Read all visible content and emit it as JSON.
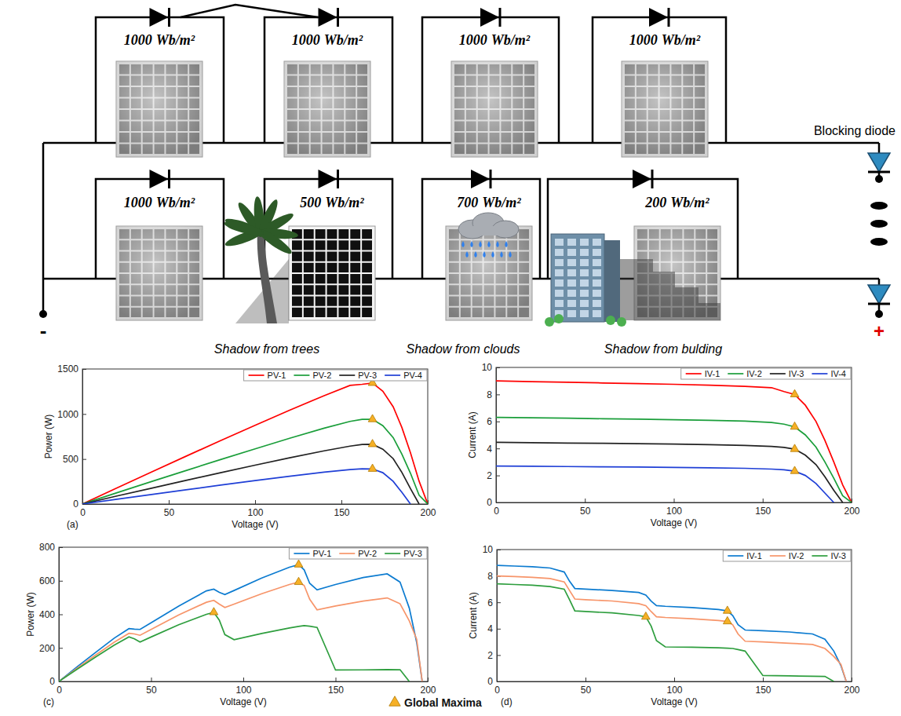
{
  "diagram": {
    "irradiance_unit": "Wb/m²",
    "blocking_diode_label": "Blocking diode",
    "terminals": {
      "negative": "-",
      "positive": "+"
    },
    "strings": [
      {
        "modules": [
          {
            "irradiance": 1000
          },
          {
            "irradiance": 1000
          },
          {
            "irradiance": 1000
          },
          {
            "irradiance": 1000
          }
        ]
      },
      {
        "modules": [
          {
            "irradiance": 1000
          },
          {
            "irradiance": 500,
            "shadow": "Shadow from trees"
          },
          {
            "irradiance": 700,
            "shadow": "Shadow from clouds"
          },
          {
            "irradiance": 200,
            "shadow": "Shadow from bulding"
          }
        ]
      }
    ]
  },
  "maxima_legend": {
    "label": "Global Maxima",
    "color": "#f6b026",
    "marker": "triangle"
  },
  "chart_data": [
    {
      "type": "line",
      "panel": "(a)",
      "x_label": "Voltage (V)",
      "y_label": "Power (W)",
      "x": [
        0,
        20,
        40,
        60,
        80,
        100,
        120,
        140,
        155,
        162,
        168,
        174,
        180,
        185,
        190,
        195,
        200
      ],
      "xlim": [
        0,
        200
      ],
      "xticks": [
        0,
        50,
        100,
        150,
        200
      ],
      "ylim": [
        0,
        1500
      ],
      "yticks": [
        0,
        500,
        1000,
        1500
      ],
      "legend": "top right",
      "series": [
        {
          "name": "PV-1",
          "color": "#ff0000",
          "values": [
            0,
            179,
            356,
            531,
            704,
            875,
            1042,
            1204,
            1318,
            1330,
            1344,
            1253,
            1080,
            851,
            570,
            254,
            0
          ]
        },
        {
          "name": "PV-2",
          "color": "#1a9e3a",
          "values": [
            0,
            125,
            250,
            372,
            494,
            613,
            730,
            843,
            918,
            940,
            941,
            870,
            738,
            555,
            342,
            98,
            0
          ]
        },
        {
          "name": "PV-3",
          "color": "#222222",
          "values": [
            0,
            89,
            176,
            263,
            348,
            432,
            514,
            591,
            643,
            661,
            664,
            609,
            504,
            352,
            171,
            0,
            null
          ]
        },
        {
          "name": "PV-4",
          "color": "#1f3fd6",
          "values": [
            0,
            54,
            106,
            158,
            210,
            260,
            308,
            354,
            383,
            392,
            390,
            348,
            252,
            130,
            0,
            null,
            null
          ]
        }
      ],
      "global_maxima": {
        "x": [
          168,
          168,
          168,
          168
        ],
        "values": [
          1344,
          941,
          664,
          390
        ]
      }
    },
    {
      "type": "line",
      "x_label": "Voltage (V)",
      "y_label": "Current (A)",
      "x": [
        0,
        20,
        40,
        60,
        80,
        100,
        120,
        140,
        155,
        162,
        168,
        174,
        180,
        185,
        190,
        195,
        200
      ],
      "xlim": [
        0,
        200
      ],
      "xticks": [
        0,
        50,
        100,
        150,
        200
      ],
      "ylim": [
        0,
        10
      ],
      "yticks": [
        0,
        2,
        4,
        6,
        8,
        10
      ],
      "legend": "top right",
      "series": [
        {
          "name": "IV-1",
          "color": "#ff0000",
          "values": [
            9,
            8.95,
            8.9,
            8.85,
            8.8,
            8.75,
            8.68,
            8.6,
            8.5,
            8.21,
            8,
            7.2,
            6,
            4.6,
            3,
            1.3,
            0
          ]
        },
        {
          "name": "IV-2",
          "color": "#1a9e3a",
          "values": [
            6.3,
            6.27,
            6.24,
            6.2,
            6.17,
            6.13,
            6.08,
            6.02,
            5.92,
            5.8,
            5.6,
            5,
            4.1,
            3,
            1.8,
            0.5,
            0
          ]
        },
        {
          "name": "IV-3",
          "color": "#222222",
          "values": [
            4.45,
            4.43,
            4.4,
            4.38,
            4.35,
            4.32,
            4.28,
            4.22,
            4.15,
            4.08,
            3.95,
            3.5,
            2.8,
            1.9,
            0.9,
            0,
            null
          ]
        },
        {
          "name": "IV-4",
          "color": "#1f3fd6",
          "values": [
            2.7,
            2.68,
            2.66,
            2.64,
            2.62,
            2.6,
            2.57,
            2.53,
            2.47,
            2.42,
            2.32,
            2,
            1.4,
            0.7,
            0,
            null,
            null
          ]
        }
      ],
      "global_maxima": {
        "x": [
          168,
          168,
          168,
          168
        ],
        "values": [
          8,
          5.6,
          3.95,
          2.32
        ]
      }
    },
    {
      "type": "line",
      "panel": "(c)",
      "x_label": "Voltage (V)",
      "y_label": "Power (W)",
      "x": [
        0,
        10,
        20,
        30,
        38,
        41,
        44,
        50,
        65,
        80,
        84,
        87,
        90,
        95,
        110,
        125,
        130,
        133,
        136,
        140,
        150,
        165,
        178,
        185,
        190,
        194,
        197,
        200
      ],
      "xlim": [
        0,
        200
      ],
      "xticks": [
        0,
        50,
        100,
        150,
        200
      ],
      "ylim": [
        0,
        800
      ],
      "yticks": [
        0,
        200,
        400,
        600,
        800
      ],
      "legend": "top right",
      "series": [
        {
          "name": "PV-1",
          "color": "#0c7bd0",
          "values": [
            0,
            88,
            174,
            258,
            315,
            312,
            310,
            350,
            449,
            540,
            550,
            531,
            518,
            542,
            616,
            681,
            696,
            665,
            585,
            546,
            578,
            619,
            641,
            592,
            437,
            233,
            0,
            null
          ]
        },
        {
          "name": "PV-2",
          "color": "#f7956a",
          "values": [
            0,
            80,
            158,
            234,
            287,
            283,
            275,
            310,
            397,
            472,
            483,
            461,
            441,
            461,
            523,
            578,
            592,
            572,
            490,
            427,
            450,
            479,
            498,
            463,
            361,
            252,
            0,
            null
          ]
        },
        {
          "name": "PV-3",
          "color": "#2e9e3e",
          "values": [
            0,
            74,
            146,
            216,
            266,
            254,
            235,
            265,
            338,
            400,
            412,
            365,
            279,
            249,
            286,
            319,
            328,
            333,
            329,
            322,
            68,
            69,
            71,
            70,
            0,
            null,
            null,
            null
          ]
        }
      ],
      "global_maxima": {
        "x": [
          130,
          130,
          84
        ],
        "values": [
          696,
          592,
          412
        ]
      }
    },
    {
      "type": "line",
      "panel": "(d)",
      "x_label": "Voltage (V)",
      "y_label": "Current (A)",
      "x": [
        0,
        10,
        20,
        30,
        38,
        41,
        44,
        50,
        65,
        80,
        84,
        87,
        90,
        95,
        110,
        125,
        130,
        133,
        136,
        140,
        150,
        165,
        178,
        185,
        190,
        194,
        197,
        200
      ],
      "xlim": [
        0,
        200
      ],
      "xticks": [
        0,
        50,
        100,
        150,
        200
      ],
      "ylim": [
        0,
        10
      ],
      "yticks": [
        0,
        2,
        4,
        6,
        8,
        10
      ],
      "legend": "top right",
      "series": [
        {
          "name": "IV-1",
          "color": "#0c7bd0",
          "values": [
            8.8,
            8.75,
            8.7,
            8.6,
            8.3,
            7.6,
            7.05,
            7,
            6.9,
            6.75,
            6.55,
            6.1,
            5.75,
            5.7,
            5.6,
            5.45,
            5.35,
            5,
            4.3,
            3.9,
            3.85,
            3.75,
            3.6,
            3.2,
            2.3,
            1.2,
            0,
            null
          ]
        },
        {
          "name": "IV-2",
          "color": "#f7956a",
          "values": [
            8,
            7.95,
            7.9,
            7.8,
            7.55,
            6.9,
            6.25,
            6.2,
            6.1,
            5.9,
            5.75,
            5.3,
            4.9,
            4.85,
            4.75,
            4.62,
            4.55,
            4.3,
            3.6,
            3.05,
            3,
            2.9,
            2.8,
            2.5,
            1.9,
            1.3,
            0,
            null
          ]
        },
        {
          "name": "IV-3",
          "color": "#2e9e3e",
          "values": [
            7.4,
            7.35,
            7.3,
            7.2,
            7,
            6.2,
            5.35,
            5.3,
            5.2,
            5,
            4.9,
            4.2,
            3.1,
            2.62,
            2.6,
            2.55,
            2.52,
            2.5,
            2.42,
            2.3,
            0.45,
            0.42,
            0.4,
            0.38,
            0,
            null,
            null,
            null
          ]
        }
      ],
      "global_maxima": {
        "x": [
          130,
          130,
          84
        ],
        "values": [
          5.35,
          4.55,
          4.9
        ]
      }
    }
  ]
}
